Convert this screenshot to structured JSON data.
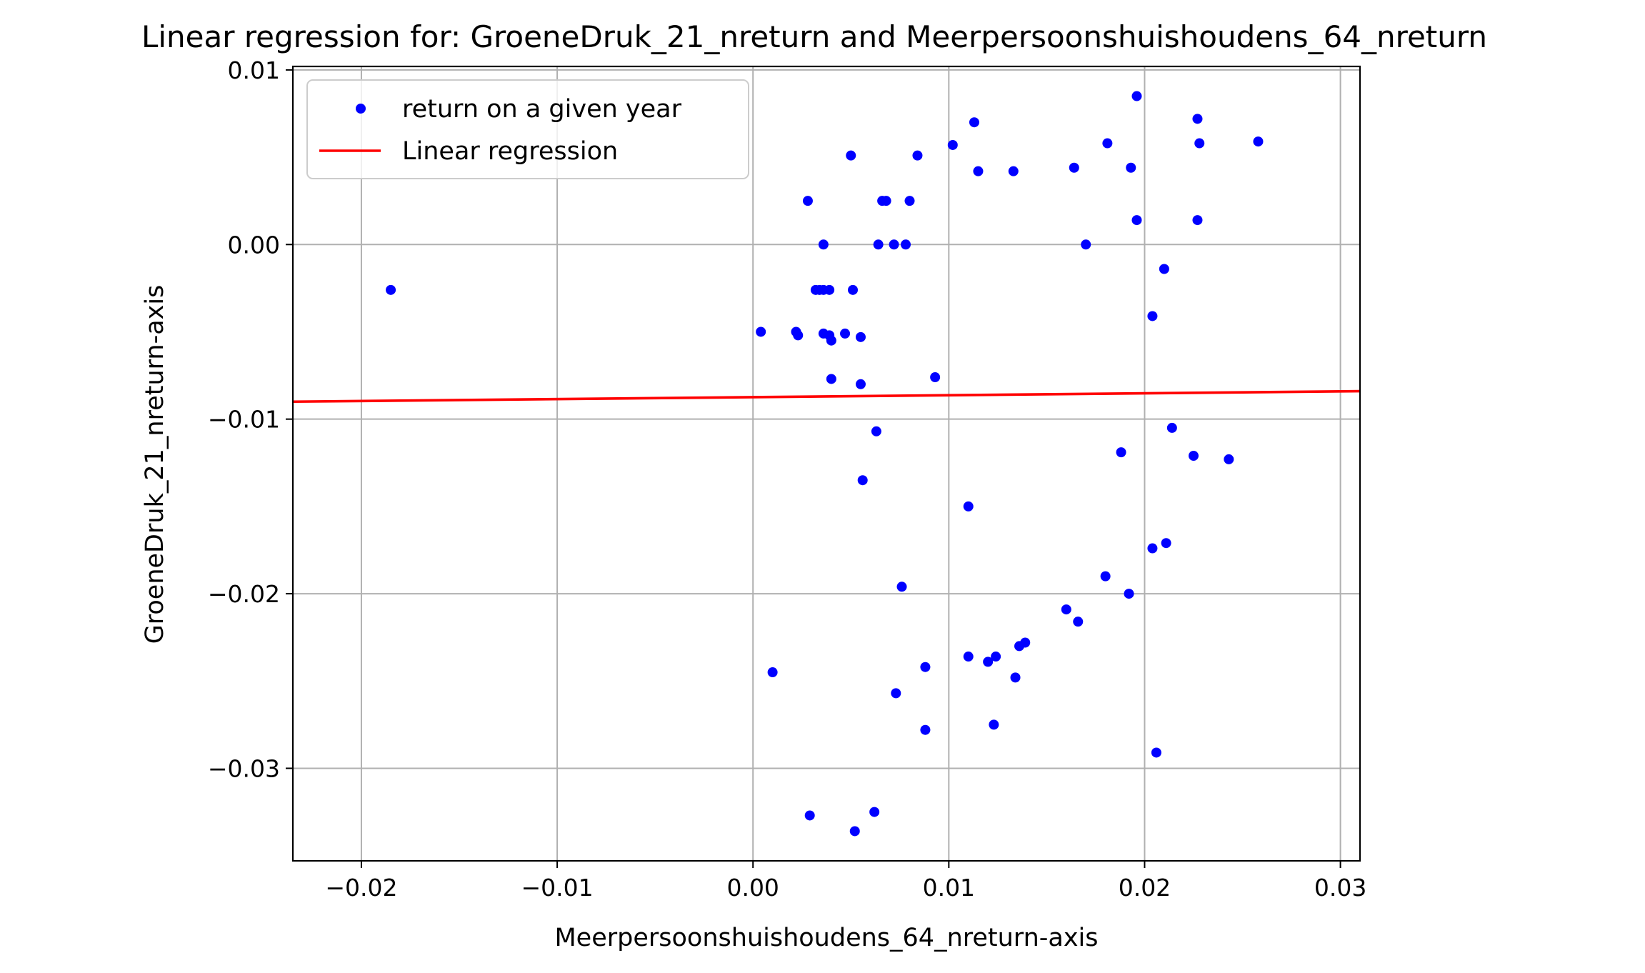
{
  "chart_data": {
    "type": "scatter",
    "title": "Linear regression for: GroeneDruk_21_nreturn and Meerpersoonshuishoudens_64_nreturn",
    "xlabel": "Meerpersoonshuishoudens_64_nreturn-axis",
    "ylabel": "GroeneDruk_21_nreturn-axis",
    "xlim": [
      -0.0235,
      0.031
    ],
    "ylim": [
      -0.0353,
      0.0102
    ],
    "xticks": [
      -0.02,
      -0.01,
      0.0,
      0.01,
      0.02,
      0.03
    ],
    "xtick_labels": [
      "−0.02",
      "−0.01",
      "0.00",
      "0.01",
      "0.02",
      "0.03"
    ],
    "yticks": [
      -0.03,
      -0.02,
      -0.01,
      0.0,
      0.01
    ],
    "ytick_labels": [
      "−0.03",
      "−0.02",
      "−0.01",
      "0.00",
      "0.01"
    ],
    "grid": true,
    "legend_position": "top-left",
    "series": [
      {
        "name": "return on a given year",
        "kind": "scatter",
        "color": "#0000ff",
        "points": [
          [
            -0.0185,
            -0.0026
          ],
          [
            0.0004,
            -0.005
          ],
          [
            0.0022,
            -0.005
          ],
          [
            0.0023,
            -0.0052
          ],
          [
            0.0028,
            0.0025
          ],
          [
            0.0032,
            -0.0026
          ],
          [
            0.0034,
            -0.0026
          ],
          [
            0.0036,
            -0.0026
          ],
          [
            0.0039,
            -0.0026
          ],
          [
            0.0036,
            0.0
          ],
          [
            0.0036,
            -0.0051
          ],
          [
            0.0039,
            -0.0052
          ],
          [
            0.004,
            -0.0055
          ],
          [
            0.004,
            -0.0077
          ],
          [
            0.0047,
            -0.0051
          ],
          [
            0.005,
            0.0051
          ],
          [
            0.0051,
            -0.0026
          ],
          [
            0.0055,
            -0.0053
          ],
          [
            0.0055,
            -0.008
          ],
          [
            0.0056,
            -0.0135
          ],
          [
            0.0063,
            -0.0107
          ],
          [
            0.0064,
            0.0
          ],
          [
            0.0066,
            0.0025
          ],
          [
            0.0068,
            0.0025
          ],
          [
            0.0072,
            0.0
          ],
          [
            0.0078,
            0.0
          ],
          [
            0.008,
            0.0025
          ],
          [
            0.0084,
            0.0051
          ],
          [
            0.0093,
            -0.0076
          ],
          [
            0.0102,
            0.0057
          ],
          [
            0.011,
            -0.015
          ],
          [
            0.0113,
            0.007
          ],
          [
            0.0115,
            0.0042
          ],
          [
            0.0133,
            0.0042
          ],
          [
            0.0164,
            0.0044
          ],
          [
            0.017,
            0.0
          ],
          [
            0.0181,
            0.0058
          ],
          [
            0.0193,
            0.0044
          ],
          [
            0.0196,
            0.0085
          ],
          [
            0.0196,
            0.0014
          ],
          [
            0.0204,
            -0.0041
          ],
          [
            0.021,
            -0.0014
          ],
          [
            0.0214,
            -0.0105
          ],
          [
            0.0188,
            -0.0119
          ],
          [
            0.0225,
            -0.0121
          ],
          [
            0.0227,
            0.0072
          ],
          [
            0.0227,
            0.0014
          ],
          [
            0.0228,
            0.0058
          ],
          [
            0.0243,
            -0.0123
          ],
          [
            0.0258,
            0.0059
          ],
          [
            0.0204,
            -0.0174
          ],
          [
            0.0211,
            -0.0171
          ],
          [
            0.018,
            -0.019
          ],
          [
            0.0192,
            -0.02
          ],
          [
            0.016,
            -0.0209
          ],
          [
            0.0166,
            -0.0216
          ],
          [
            0.0076,
            -0.0196
          ],
          [
            0.0139,
            -0.0228
          ],
          [
            0.0136,
            -0.023
          ],
          [
            0.011,
            -0.0236
          ],
          [
            0.012,
            -0.0239
          ],
          [
            0.0124,
            -0.0236
          ],
          [
            0.0134,
            -0.0248
          ],
          [
            0.0088,
            -0.0242
          ],
          [
            0.001,
            -0.0245
          ],
          [
            0.0073,
            -0.0257
          ],
          [
            0.0088,
            -0.0278
          ],
          [
            0.0123,
            -0.0275
          ],
          [
            0.0206,
            -0.0291
          ],
          [
            0.0029,
            -0.0327
          ],
          [
            0.0062,
            -0.0325
          ],
          [
            0.0052,
            -0.0336
          ]
        ]
      },
      {
        "name": "Linear regression",
        "kind": "line",
        "color": "#ff0000",
        "points": [
          [
            -0.0235,
            -0.009
          ],
          [
            0.031,
            -0.0084
          ]
        ]
      }
    ]
  }
}
